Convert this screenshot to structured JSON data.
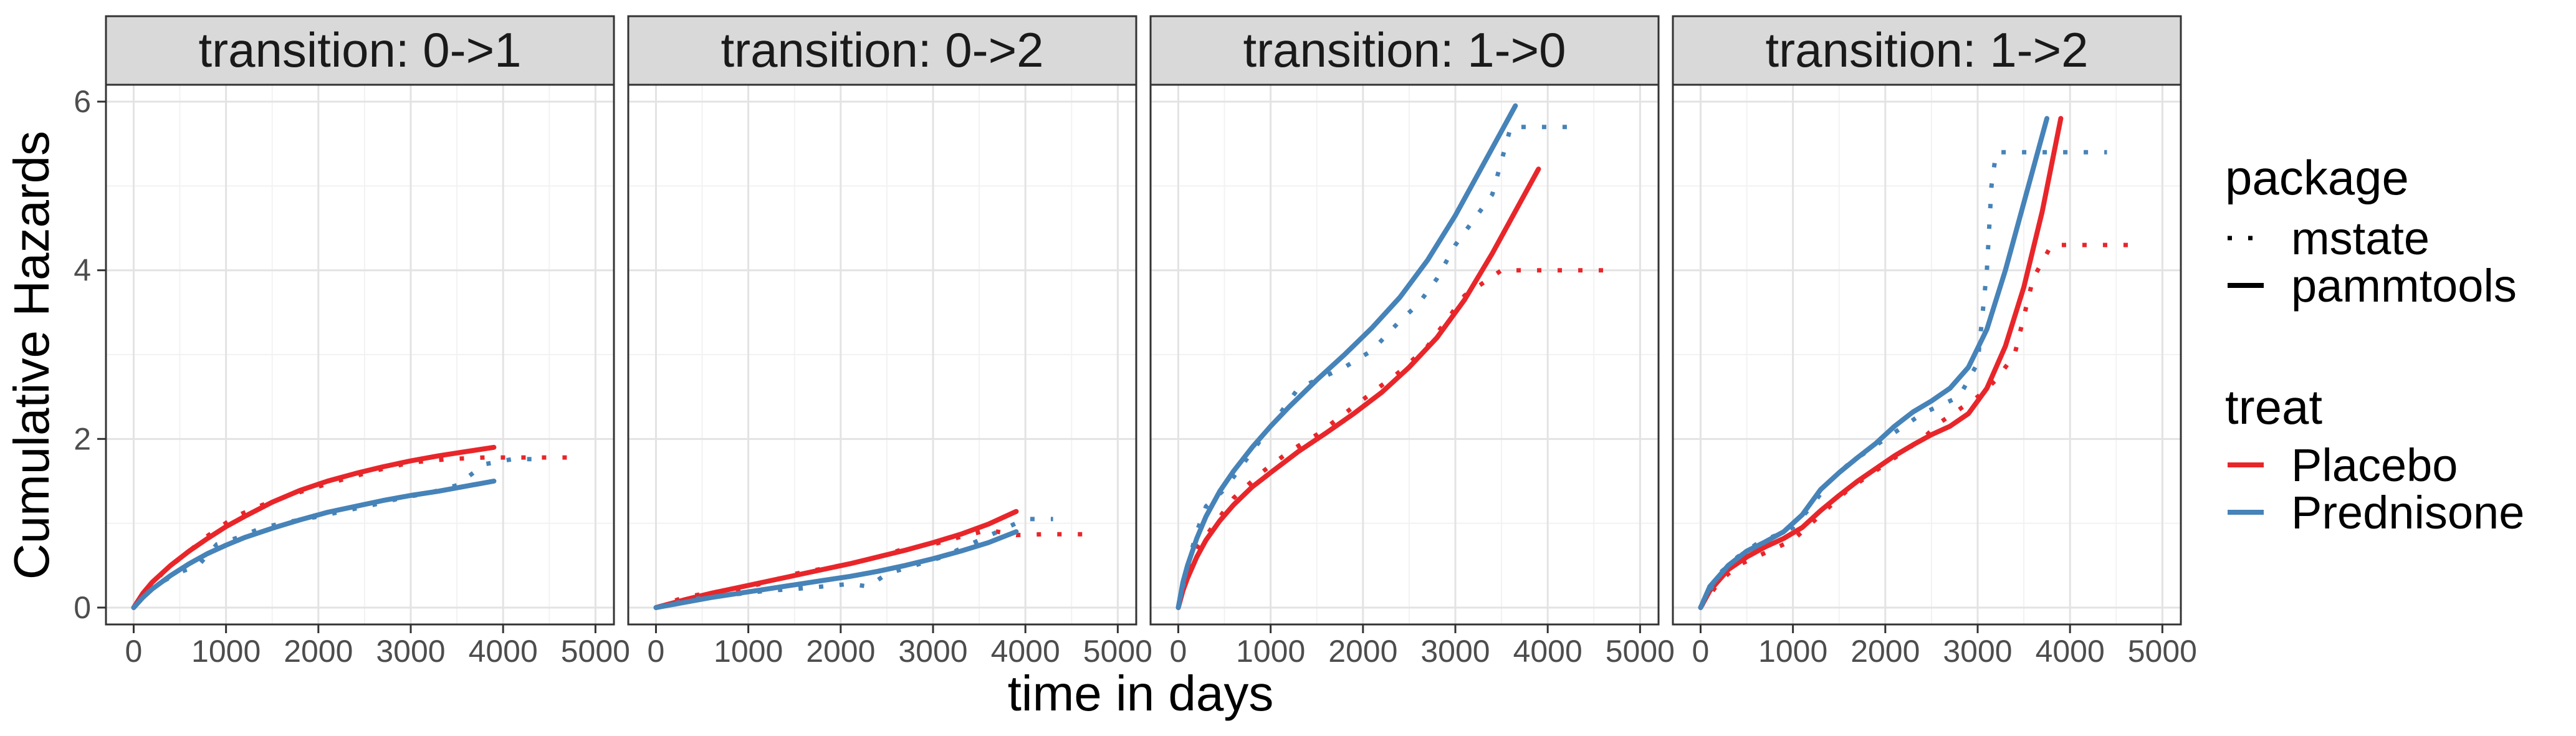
{
  "chart_data": {
    "type": "line",
    "xlabel": "time in days",
    "ylabel": "Cumulative Hazards",
    "xlim": [
      -300,
      5200
    ],
    "ylim": [
      -0.2,
      6.2
    ],
    "x_ticks": [
      0,
      1000,
      2000,
      3000,
      4000,
      5000
    ],
    "x_tick_labels": [
      "0",
      "1000",
      "2000",
      "3000",
      "4000",
      "5000"
    ],
    "y_ticks": [
      0,
      2,
      4,
      6
    ],
    "y_tick_labels": [
      "0",
      "2",
      "4",
      "6"
    ],
    "grid": true,
    "colors": {
      "Placebo": "#e8262a",
      "Prednisone": "#4683b8"
    },
    "legend": {
      "placement": "right",
      "groups": [
        {
          "title": "package",
          "items": [
            {
              "label": "mstate",
              "linetype": "dotted"
            },
            {
              "label": "pammtools",
              "linetype": "solid"
            }
          ]
        },
        {
          "title": "treat",
          "items": [
            {
              "label": "Placebo",
              "color": "#e8262a"
            },
            {
              "label": "Prednisone",
              "color": "#4683b8"
            }
          ]
        }
      ]
    },
    "panels": [
      {
        "title": "transition: 0->1",
        "series": [
          {
            "treat": "Placebo",
            "package": "pammtools",
            "x": [
              0,
              100,
              200,
              400,
              600,
              800,
              1000,
              1200,
              1500,
              1800,
              2100,
              2400,
              2700,
              3000,
              3300,
              3600,
              3900
            ],
            "y": [
              0,
              0.17,
              0.3,
              0.5,
              0.67,
              0.82,
              0.96,
              1.08,
              1.25,
              1.39,
              1.5,
              1.59,
              1.67,
              1.74,
              1.8,
              1.85,
              1.9
            ]
          },
          {
            "treat": "Placebo",
            "package": "mstate",
            "x": [
              0,
              150,
              350,
              500,
              800,
              1100,
              1400,
              1800,
              2200,
              2600,
              3000,
              3400,
              3800,
              4200,
              4700
            ],
            "y": [
              0,
              0.22,
              0.45,
              0.58,
              0.85,
              1.08,
              1.22,
              1.37,
              1.5,
              1.62,
              1.72,
              1.76,
              1.78,
              1.78,
              1.78
            ]
          },
          {
            "treat": "Prednisone",
            "package": "pammtools",
            "x": [
              0,
              100,
              200,
              400,
              600,
              800,
              1000,
              1200,
              1500,
              1800,
              2100,
              2400,
              2700,
              3000,
              3300,
              3600,
              3900
            ],
            "y": [
              0,
              0.12,
              0.22,
              0.38,
              0.52,
              0.64,
              0.74,
              0.83,
              0.94,
              1.04,
              1.13,
              1.2,
              1.27,
              1.33,
              1.38,
              1.44,
              1.5
            ]
          },
          {
            "treat": "Prednisone",
            "package": "mstate",
            "x": [
              0,
              150,
              300,
              500,
              700,
              900,
              1100,
              1400,
              1700,
              2000,
              2300,
              2600,
              2900,
              3200,
              3500,
              3800,
              4100,
              4400
            ],
            "y": [
              0,
              0.18,
              0.3,
              0.42,
              0.5,
              0.75,
              0.82,
              0.95,
              1.02,
              1.08,
              1.15,
              1.22,
              1.3,
              1.36,
              1.45,
              1.7,
              1.76,
              1.76
            ]
          }
        ]
      },
      {
        "title": "transition: 0->2",
        "series": [
          {
            "treat": "Placebo",
            "package": "pammtools",
            "x": [
              0,
              300,
              600,
              900,
              1200,
              1500,
              1800,
              2100,
              2400,
              2700,
              3000,
              3300,
              3600,
              3900
            ],
            "y": [
              0,
              0.09,
              0.17,
              0.24,
              0.31,
              0.38,
              0.45,
              0.52,
              0.6,
              0.68,
              0.77,
              0.87,
              0.99,
              1.14
            ]
          },
          {
            "treat": "Placebo",
            "package": "mstate",
            "x": [
              0,
              300,
              600,
              900,
              1200,
              1500,
              1800,
              2100,
              2400,
              2700,
              3000,
              3300,
              3600,
              3900,
              4200,
              4700
            ],
            "y": [
              0,
              0.12,
              0.18,
              0.22,
              0.3,
              0.4,
              0.46,
              0.52,
              0.6,
              0.7,
              0.75,
              0.84,
              0.92,
              0.86,
              0.87,
              0.87
            ]
          },
          {
            "treat": "Prednisone",
            "package": "pammtools",
            "x": [
              0,
              300,
              600,
              900,
              1200,
              1500,
              1800,
              2100,
              2400,
              2700,
              3000,
              3300,
              3600,
              3900
            ],
            "y": [
              0,
              0.06,
              0.12,
              0.17,
              0.22,
              0.27,
              0.32,
              0.37,
              0.43,
              0.5,
              0.58,
              0.67,
              0.77,
              0.9
            ]
          },
          {
            "treat": "Prednisone",
            "package": "mstate",
            "x": [
              0,
              400,
              800,
              1200,
              1500,
              1800,
              2100,
              2300,
              2500,
              2800,
              3100,
              3400,
              3700,
              4000,
              4300
            ],
            "y": [
              0,
              0.1,
              0.15,
              0.2,
              0.22,
              0.25,
              0.28,
              0.25,
              0.4,
              0.5,
              0.6,
              0.75,
              0.9,
              1.05,
              1.05
            ]
          }
        ]
      },
      {
        "title": "transition: 1->0",
        "series": [
          {
            "treat": "Placebo",
            "package": "pammtools",
            "x": [
              0,
              50,
              100,
              200,
              300,
              450,
              600,
              800,
              1000,
              1300,
              1600,
              1900,
              2200,
              2500,
              2800,
              3100,
              3400,
              3700,
              3900
            ],
            "y": [
              0,
              0.2,
              0.35,
              0.6,
              0.8,
              1.03,
              1.22,
              1.43,
              1.6,
              1.85,
              2.07,
              2.3,
              2.55,
              2.85,
              3.2,
              3.65,
              4.2,
              4.8,
              5.2
            ]
          },
          {
            "treat": "Placebo",
            "package": "mstate",
            "x": [
              0,
              100,
              200,
              400,
              600,
              900,
              1200,
              1500,
              1800,
              2100,
              2400,
              2700,
              2900,
              3100,
              3300,
              3500,
              3800,
              4100,
              4400,
              4700
            ],
            "y": [
              0,
              0.4,
              0.7,
              1.0,
              1.3,
              1.6,
              1.85,
              2.05,
              2.3,
              2.55,
              2.8,
              3.1,
              3.4,
              3.7,
              3.85,
              4.0,
              4.0,
              4.0,
              4.0,
              4.0
            ]
          },
          {
            "treat": "Prednisone",
            "package": "pammtools",
            "x": [
              0,
              50,
              100,
              200,
              300,
              450,
              600,
              800,
              1000,
              1200,
              1500,
              1800,
              2100,
              2400,
              2700,
              3000,
              3300,
              3650
            ],
            "y": [
              0,
              0.3,
              0.5,
              0.82,
              1.08,
              1.38,
              1.62,
              1.9,
              2.15,
              2.38,
              2.7,
              3.0,
              3.32,
              3.68,
              4.12,
              4.65,
              5.25,
              5.95
            ]
          },
          {
            "treat": "Prednisone",
            "package": "mstate",
            "x": [
              0,
              100,
              200,
              300,
              500,
              700,
              900,
              1100,
              1300,
              1500,
              1800,
              2100,
              2400,
              2600,
              2800,
              3000,
              3200,
              3400,
              3600,
              3800,
              4100,
              4300
            ],
            "y": [
              0,
              0.5,
              0.9,
              1.2,
              1.4,
              1.7,
              2.0,
              2.3,
              2.6,
              2.7,
              2.85,
              3.05,
              3.4,
              3.6,
              3.9,
              4.3,
              4.6,
              4.9,
              5.7,
              5.7,
              5.7,
              5.7
            ]
          }
        ]
      },
      {
        "title": "transition: 1->2",
        "series": [
          {
            "treat": "Placebo",
            "package": "pammtools",
            "x": [
              0,
              100,
              300,
              500,
              700,
              900,
              1100,
              1300,
              1500,
              1700,
              1900,
              2100,
              2300,
              2500,
              2700,
              2900,
              3100,
              3300,
              3500,
              3700,
              3900
            ],
            "y": [
              0,
              0.2,
              0.45,
              0.6,
              0.72,
              0.82,
              0.95,
              1.15,
              1.33,
              1.5,
              1.65,
              1.8,
              1.93,
              2.05,
              2.15,
              2.3,
              2.6,
              3.1,
              3.8,
              4.7,
              5.8
            ]
          },
          {
            "treat": "Placebo",
            "package": "mstate",
            "x": [
              0,
              200,
              400,
              600,
              800,
              1000,
              1200,
              1400,
              1600,
              1800,
              2000,
              2200,
              2400,
              2600,
              2800,
              3000,
              3200,
              3400,
              3600,
              3800,
              4100,
              4400,
              4750
            ],
            "y": [
              0,
              0.3,
              0.5,
              0.6,
              0.7,
              0.8,
              1.0,
              1.2,
              1.4,
              1.55,
              1.7,
              1.85,
              2.0,
              2.2,
              2.35,
              2.5,
              2.7,
              3.0,
              3.9,
              4.3,
              4.3,
              4.3,
              4.3
            ]
          },
          {
            "treat": "Prednisone",
            "package": "pammtools",
            "x": [
              0,
              100,
              300,
              500,
              700,
              900,
              1100,
              1300,
              1500,
              1700,
              1900,
              2100,
              2300,
              2500,
              2700,
              2900,
              3100,
              3300,
              3500,
              3750
            ],
            "y": [
              0,
              0.25,
              0.5,
              0.67,
              0.78,
              0.9,
              1.1,
              1.4,
              1.6,
              1.78,
              1.95,
              2.15,
              2.32,
              2.45,
              2.6,
              2.85,
              3.3,
              4.0,
              4.8,
              5.8
            ]
          },
          {
            "treat": "Prednisone",
            "package": "mstate",
            "x": [
              0,
              200,
              400,
              600,
              800,
              1000,
              1200,
              1400,
              1600,
              1800,
              2000,
              2200,
              2400,
              2600,
              2800,
              3000,
              3100,
              3150,
              3200,
              3400,
              3700,
              4000,
              4400
            ],
            "y": [
              0,
              0.4,
              0.6,
              0.75,
              0.85,
              0.95,
              1.2,
              1.5,
              1.7,
              1.85,
              2.0,
              2.15,
              2.3,
              2.4,
              2.5,
              2.9,
              4.0,
              5.0,
              5.4,
              5.4,
              5.4,
              5.4,
              5.4
            ]
          }
        ]
      }
    ]
  }
}
